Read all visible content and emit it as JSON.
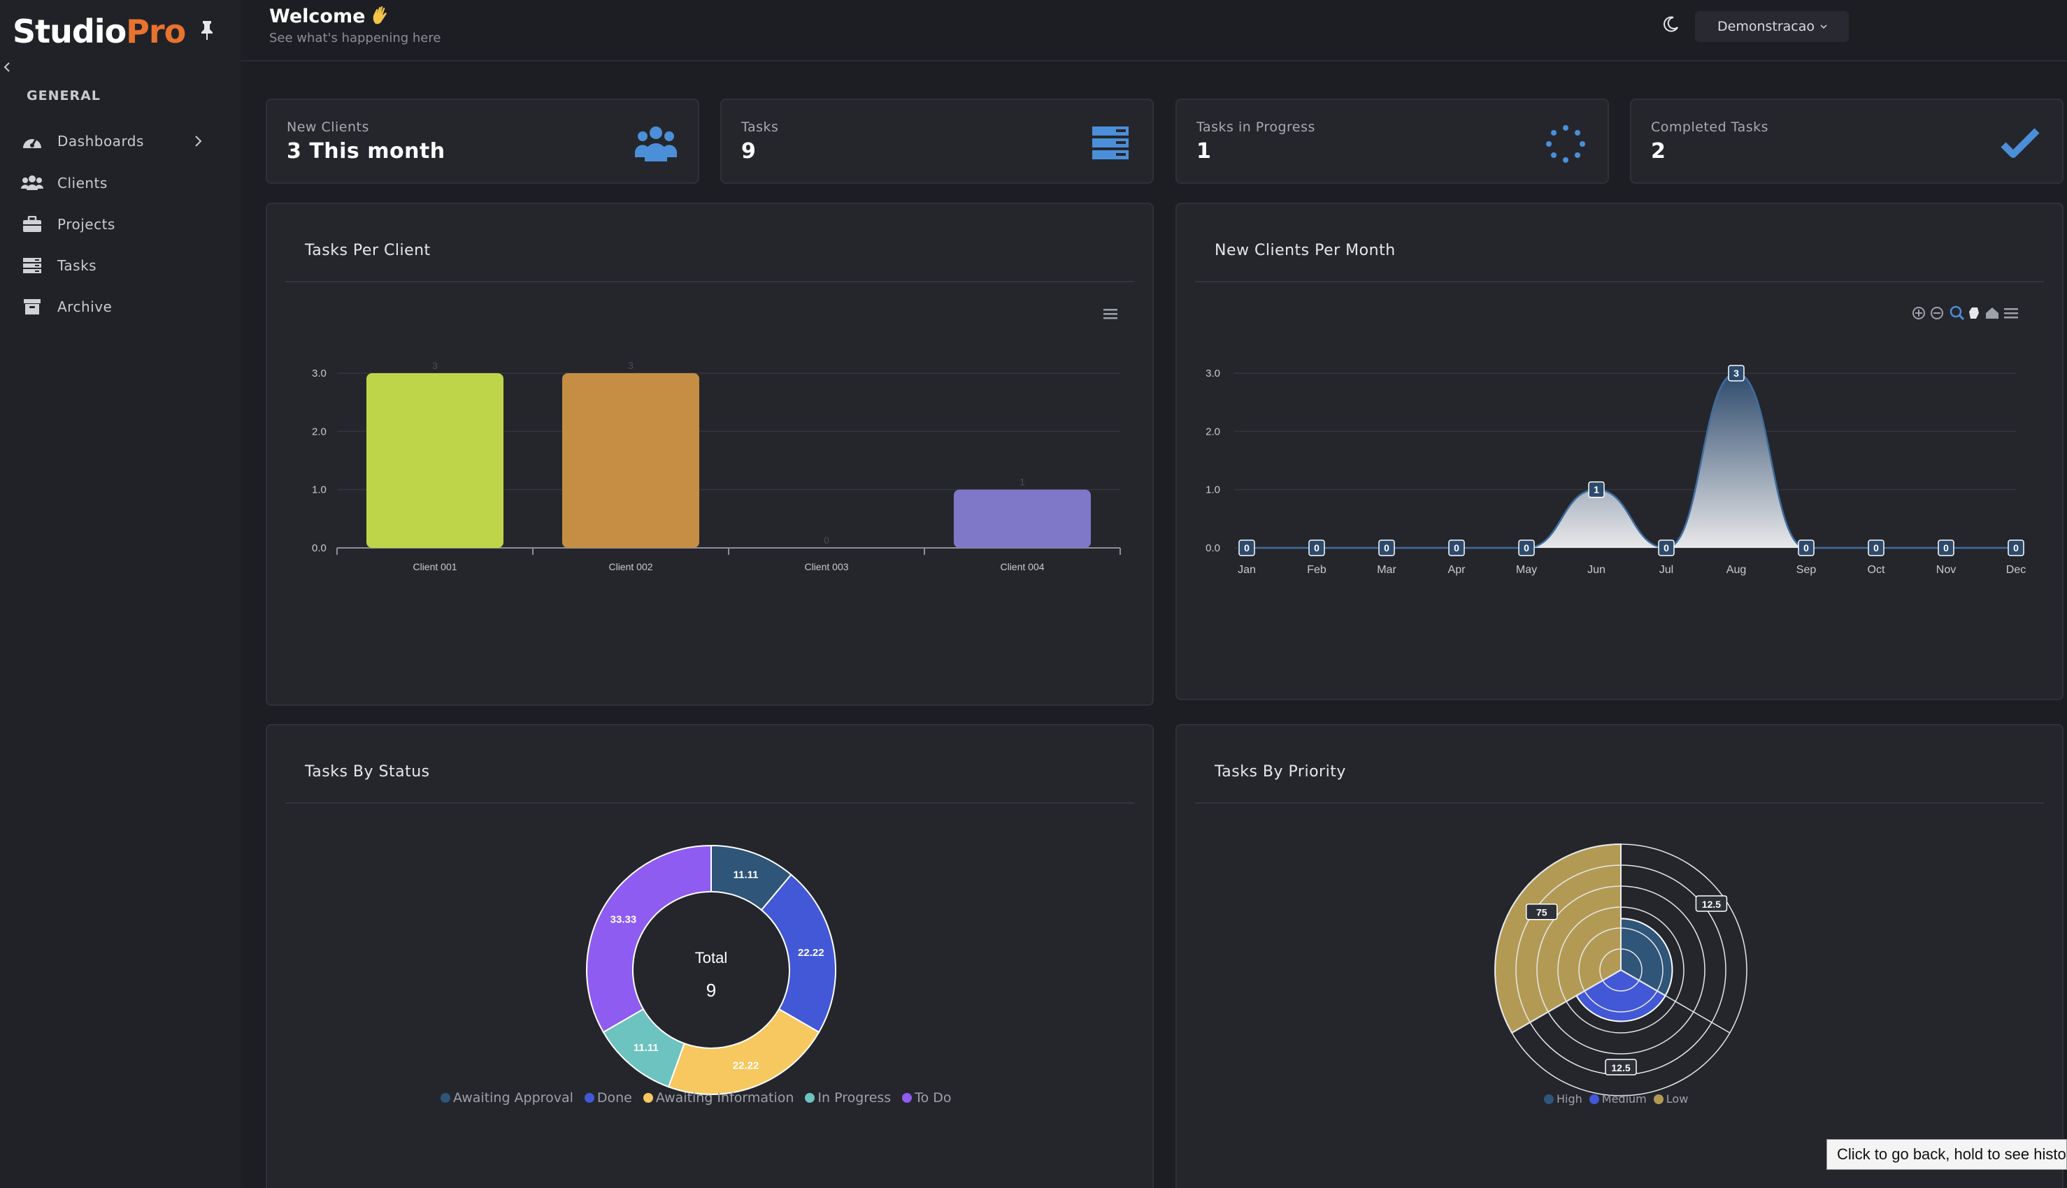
{
  "app": {
    "logo_main": "Studio",
    "logo_accent": "Pro",
    "accent_color": "#e8732d"
  },
  "sidebar": {
    "section": "GENERAL",
    "items": [
      {
        "label": "Dashboards",
        "icon": "dashboard-gauge-icon",
        "has_chevron": true
      },
      {
        "label": "Clients",
        "icon": "users-icon"
      },
      {
        "label": "Projects",
        "icon": "briefcase-icon"
      },
      {
        "label": "Tasks",
        "icon": "server-list-icon"
      },
      {
        "label": "Archive",
        "icon": "archive-box-icon"
      }
    ]
  },
  "header": {
    "title": "Welcome",
    "subtitle": "See what's happening here",
    "user": "Demonstracao"
  },
  "stats": [
    {
      "label": "New Clients",
      "value": "3 This month",
      "icon": "users-icon"
    },
    {
      "label": "Tasks",
      "value": "9",
      "icon": "server-stack-icon"
    },
    {
      "label": "Tasks in Progress",
      "value": "1",
      "icon": "spinner-icon"
    },
    {
      "label": "Completed Tasks",
      "value": "2",
      "icon": "checkmark-icon"
    }
  ],
  "panels": {
    "tasks_per_client": "Tasks Per Client",
    "new_clients_per_month": "New Clients Per Month",
    "tasks_by_status": "Tasks By Status",
    "tasks_by_priority": "Tasks By Priority"
  },
  "chart_data": [
    {
      "type": "bar",
      "title": "Tasks Per Client",
      "categories": [
        "Client 001",
        "Client 002",
        "Client 003",
        "Client 004"
      ],
      "values": [
        3,
        3,
        0,
        1
      ],
      "colors": [
        "#bfd549",
        "#c68e45",
        "#7f6ad6",
        "#7f78c8"
      ],
      "yticks": [
        "0.0",
        "1.0",
        "2.0",
        "3.0"
      ],
      "ylim": [
        0,
        3
      ]
    },
    {
      "type": "area",
      "title": "New Clients Per Month",
      "categories": [
        "Jan",
        "Feb",
        "Mar",
        "Apr",
        "May",
        "Jun",
        "Jul",
        "Aug",
        "Sep",
        "Oct",
        "Nov",
        "Dec"
      ],
      "values": [
        0,
        0,
        0,
        0,
        0,
        1,
        0,
        3,
        0,
        0,
        0,
        0
      ],
      "yticks": [
        "0.0",
        "1.0",
        "2.0",
        "3.0"
      ],
      "ylim": [
        0,
        3
      ]
    },
    {
      "type": "pie",
      "title": "Tasks By Status",
      "center_label": "Total",
      "center_value": "9",
      "labels": [
        "Awaiting Approval",
        "Done",
        "Awaiting Information",
        "In Progress",
        "To Do"
      ],
      "values": [
        11.11,
        22.22,
        22.22,
        11.11,
        33.33
      ],
      "colors": [
        "#2f5578",
        "#4258d6",
        "#f6c85f",
        "#6cc3c0",
        "#8e5cf0"
      ]
    },
    {
      "type": "pie",
      "title": "Tasks By Priority",
      "labels": [
        "High",
        "Medium",
        "Low"
      ],
      "values": [
        12.5,
        12.5,
        75
      ],
      "colors": [
        "#2f5578",
        "#4258d6",
        "#b39a54"
      ]
    }
  ],
  "tooltip": "Click to go back, hold to see history"
}
